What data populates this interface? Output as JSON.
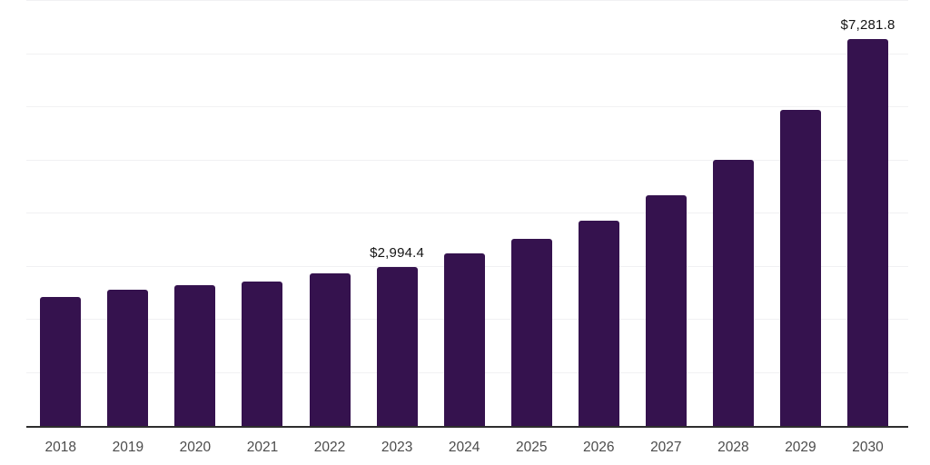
{
  "chart": {
    "background": "#FFFFFF",
    "bar_color": "#35124E",
    "axis_line_color": "#2E2E2E",
    "gridline_color": "#F1F1F3",
    "data_label_color": "#141414",
    "tick_label_color": "#4C4C4C"
  },
  "chart_data": {
    "type": "bar",
    "categories": [
      "2018",
      "2019",
      "2020",
      "2021",
      "2022",
      "2023",
      "2024",
      "2025",
      "2026",
      "2027",
      "2028",
      "2029",
      "2030"
    ],
    "values": [
      2425,
      2560,
      2645,
      2725,
      2870,
      2994.4,
      3250,
      3515,
      3860,
      4335,
      5015,
      5945,
      7281.8
    ],
    "data_labels": [
      null,
      null,
      null,
      null,
      null,
      "$2,994.4",
      null,
      null,
      null,
      null,
      null,
      null,
      "$7,281.8"
    ],
    "title": "",
    "xlabel": "",
    "ylabel": "",
    "ylim": [
      0,
      8000
    ],
    "gridline_interval": 1000,
    "grid": true,
    "y_axis_labels_visible": false,
    "legend_position": "none"
  }
}
